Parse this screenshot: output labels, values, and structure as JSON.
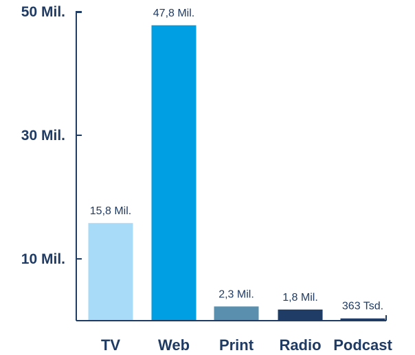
{
  "chart_data": {
    "type": "bar",
    "categories": [
      "TV",
      "Web",
      "Print",
      "Radio",
      "Podcast"
    ],
    "values": [
      15.8,
      47.8,
      2.3,
      1.8,
      0.363
    ],
    "value_unit": "Mil.",
    "data_labels": [
      "15,8 Mil.",
      "47,8 Mil.",
      "2,3 Mil.",
      "1,8 Mil.",
      "363 Tsd."
    ],
    "bar_colors": [
      "#a8dbf7",
      "#009fe3",
      "#5b8fae",
      "#1e3c66",
      "#1e3c66"
    ],
    "yticks": [
      {
        "value": 10,
        "label": "10 Mil."
      },
      {
        "value": 30,
        "label": "30 Mil."
      },
      {
        "value": 50,
        "label": "50 Mil."
      }
    ],
    "ylim": [
      0,
      50
    ],
    "grid": false,
    "legend": "none",
    "title": "",
    "xlabel": "",
    "ylabel": ""
  },
  "colors": {
    "axis": "#1f3b63",
    "text": "#1f3b63"
  }
}
